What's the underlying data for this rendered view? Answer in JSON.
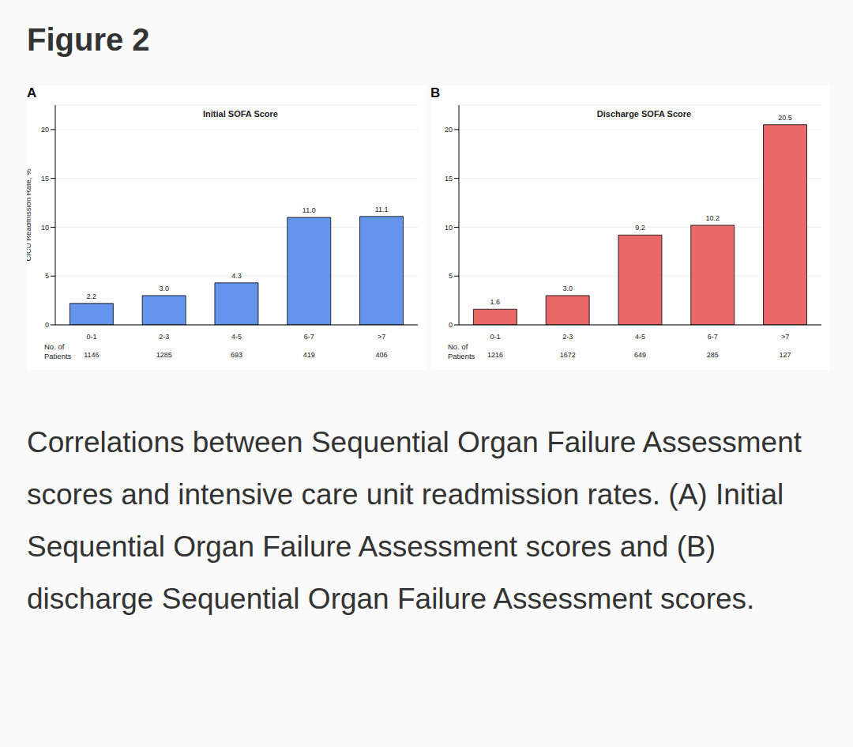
{
  "figure": {
    "title": "Figure 2",
    "caption": "Correlations between Sequential Organ Failure Assessment scores and intensive care unit readmission rates. (A) Initial Sequential Organ Failure Assessment scores and (B) discharge Sequential Organ Failure Assessment scores."
  },
  "chart_data": [
    {
      "type": "bar",
      "panel": "A",
      "title": "Initial SOFA Score",
      "ylabel": "CICU Readmission Rate, %",
      "categories": [
        "0-1",
        "2-3",
        "4-5",
        "6-7",
        ">7"
      ],
      "values": [
        2.2,
        3.0,
        4.3,
        11.0,
        11.1
      ],
      "value_labels": [
        "2.2",
        "3.0",
        "4.3",
        "11.0",
        "11.1"
      ],
      "patients_label": "No. of Patients",
      "patients": [
        1146,
        1285,
        693,
        419,
        406
      ],
      "color": "#6495ed",
      "ylim": [
        0,
        22.5
      ],
      "yticks": [
        0,
        5,
        10,
        15,
        20
      ],
      "grid": true,
      "data_labels": true
    },
    {
      "type": "bar",
      "panel": "B",
      "title": "Discharge SOFA Score",
      "categories": [
        "0-1",
        "2-3",
        "4-5",
        "6-7",
        ">7"
      ],
      "values": [
        1.6,
        3.0,
        9.2,
        10.2,
        20.5
      ],
      "value_labels": [
        "1.6",
        "3.0",
        "9.2",
        "10.2",
        "20.5"
      ],
      "patients_label": "No. of Patients",
      "patients": [
        1216,
        1672,
        649,
        285,
        127
      ],
      "color": "#eb6868",
      "ylim": [
        0,
        22.5
      ],
      "yticks": [
        0,
        5,
        10,
        15,
        20
      ],
      "grid": true,
      "data_labels": true
    }
  ]
}
